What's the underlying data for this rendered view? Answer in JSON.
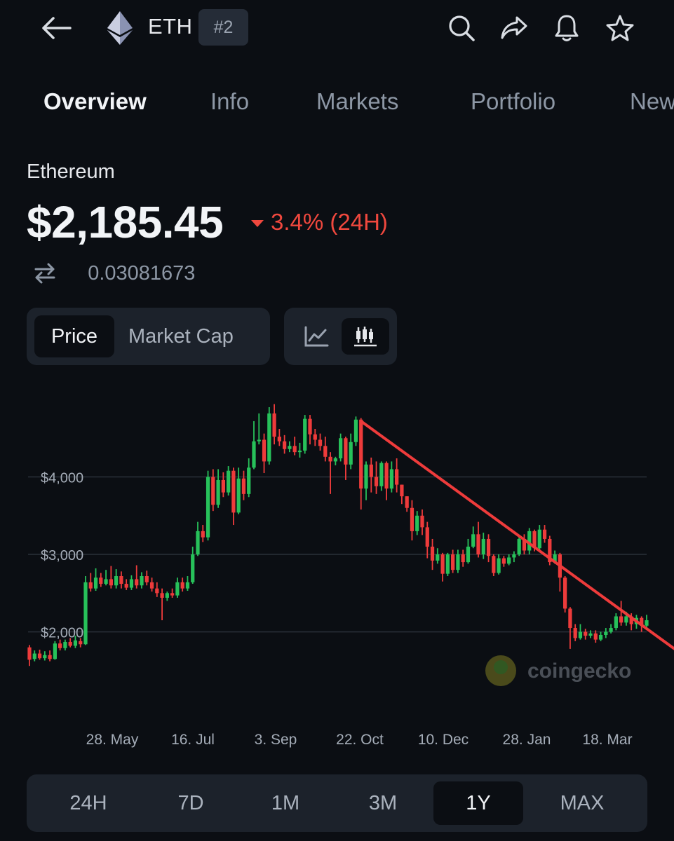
{
  "header": {
    "ticker": "ETH",
    "rank": "#2",
    "icons": [
      "back-arrow-icon",
      "ethereum-logo-icon",
      "search-icon",
      "share-icon",
      "bell-icon",
      "star-icon"
    ]
  },
  "tabs": [
    {
      "label": "Overview",
      "active": true
    },
    {
      "label": "Info",
      "active": false
    },
    {
      "label": "Markets",
      "active": false
    },
    {
      "label": "Portfolio",
      "active": false
    },
    {
      "label": "News",
      "active": false
    }
  ],
  "coin": {
    "name": "Ethereum",
    "price": "$2,185.45",
    "change": "3.4% (24H)",
    "btc_price": "0.03081673"
  },
  "toggles": {
    "price_label": "Price",
    "marketcap_label": "Market Cap",
    "active_metric": "Price",
    "chart_mode": "candlestick"
  },
  "colors": {
    "up": "#27c15a",
    "down": "#ee3b3b",
    "trendline": "#ee3b3b",
    "background": "#0b0e13"
  },
  "chart_data": {
    "type": "candlestick",
    "y_ticks": [
      {
        "value": 2000,
        "label": "$2,000"
      },
      {
        "value": 3000,
        "label": "$3,000"
      },
      {
        "value": 4000,
        "label": "$4,000"
      }
    ],
    "x_ticks": [
      "28. May",
      "16. Jul",
      "3. Sep",
      "22. Oct",
      "10. Dec",
      "28. Jan",
      "18. Mar"
    ],
    "ylim": [
      1200,
      5000
    ],
    "watermark": "coingecko",
    "candles": [
      [
        1800,
        1640,
        1830,
        1560
      ],
      [
        1650,
        1720,
        1760,
        1620
      ],
      [
        1720,
        1660,
        1770,
        1640
      ],
      [
        1660,
        1700,
        1750,
        1630
      ],
      [
        1700,
        1650,
        1760,
        1620
      ],
      [
        1650,
        1850,
        1880,
        1640
      ],
      [
        1850,
        1790,
        1900,
        1760
      ],
      [
        1790,
        1870,
        1900,
        1760
      ],
      [
        1870,
        1820,
        1920,
        1800
      ],
      [
        1820,
        1890,
        1950,
        1790
      ],
      [
        1880,
        1840,
        1920,
        1800
      ],
      [
        1840,
        2640,
        2720,
        1830
      ],
      [
        2640,
        2560,
        2760,
        2520
      ],
      [
        2560,
        2700,
        2820,
        2530
      ],
      [
        2700,
        2620,
        2760,
        2580
      ],
      [
        2620,
        2680,
        2800,
        2600
      ],
      [
        2680,
        2600,
        2850,
        2560
      ],
      [
        2600,
        2720,
        2810,
        2560
      ],
      [
        2720,
        2620,
        2780,
        2560
      ],
      [
        2620,
        2570,
        2680,
        2540
      ],
      [
        2570,
        2680,
        2730,
        2540
      ],
      [
        2680,
        2600,
        2860,
        2560
      ],
      [
        2600,
        2720,
        2770,
        2560
      ],
      [
        2720,
        2640,
        2790,
        2600
      ],
      [
        2640,
        2560,
        2700,
        2520
      ],
      [
        2560,
        2500,
        2640,
        2450
      ],
      [
        2500,
        2440,
        2560,
        2150
      ],
      [
        2440,
        2500,
        2520,
        2400
      ],
      [
        2500,
        2470,
        2560,
        2440
      ],
      [
        2470,
        2640,
        2700,
        2440
      ],
      [
        2640,
        2560,
        2700,
        2520
      ],
      [
        2560,
        2640,
        2720,
        2530
      ],
      [
        2640,
        3000,
        3100,
        2620
      ],
      [
        3000,
        3300,
        3420,
        2980
      ],
      [
        3300,
        3220,
        3380,
        3160
      ],
      [
        3220,
        4000,
        4080,
        3180
      ],
      [
        4000,
        3640,
        4100,
        3560
      ],
      [
        3640,
        3960,
        4100,
        3600
      ],
      [
        3960,
        3800,
        4060,
        3740
      ],
      [
        3800,
        4080,
        4140,
        3760
      ],
      [
        4080,
        3540,
        4120,
        3380
      ],
      [
        3540,
        3980,
        4120,
        3520
      ],
      [
        3980,
        3780,
        4080,
        3700
      ],
      [
        3780,
        4120,
        4240,
        3740
      ],
      [
        4120,
        4460,
        4720,
        4100
      ],
      [
        4460,
        4480,
        4820,
        4420
      ],
      [
        4480,
        4200,
        4560,
        4050
      ],
      [
        4200,
        4820,
        4900,
        4160
      ],
      [
        4820,
        4520,
        4940,
        4420
      ],
      [
        4520,
        4460,
        4620,
        4400
      ],
      [
        4460,
        4360,
        4540,
        4300
      ],
      [
        4360,
        4400,
        4460,
        4320
      ],
      [
        4400,
        4320,
        4520,
        4280
      ],
      [
        4320,
        4340,
        4440,
        4250
      ],
      [
        4340,
        4750,
        4800,
        4300
      ],
      [
        4750,
        4550,
        4800,
        4420
      ],
      [
        4550,
        4480,
        4620,
        4400
      ],
      [
        4480,
        4400,
        4560,
        4340
      ],
      [
        4400,
        4260,
        4520,
        4200
      ],
      [
        4260,
        4200,
        4320,
        3780
      ],
      [
        4200,
        4240,
        4260,
        4150
      ],
      [
        4240,
        4500,
        4560,
        4200
      ],
      [
        4500,
        4160,
        4520,
        3960
      ],
      [
        4160,
        4450,
        4560,
        4100
      ],
      [
        4450,
        4740,
        4780,
        4400
      ],
      [
        4740,
        3850,
        4760,
        3580
      ],
      [
        3850,
        4160,
        4200,
        3700
      ],
      [
        4160,
        4000,
        4250,
        3800
      ],
      [
        4000,
        3880,
        4200,
        3780
      ],
      [
        3880,
        4180,
        4200,
        3820
      ],
      [
        4180,
        3850,
        4200,
        3700
      ],
      [
        3850,
        4100,
        4200,
        3800
      ],
      [
        4100,
        3900,
        4240,
        3800
      ],
      [
        3900,
        3750,
        3900,
        3650
      ],
      [
        3750,
        3600,
        3750,
        3550
      ],
      [
        3600,
        3300,
        3700,
        3180
      ],
      [
        3300,
        3500,
        3560,
        3250
      ],
      [
        3500,
        3350,
        3580,
        3250
      ],
      [
        3350,
        3100,
        3420,
        2950
      ],
      [
        3100,
        2920,
        3200,
        2800
      ],
      [
        2920,
        3000,
        3080,
        2880
      ],
      [
        3000,
        2750,
        3020,
        2650
      ],
      [
        2750,
        3000,
        3020,
        2720
      ],
      [
        3000,
        2800,
        3060,
        2760
      ],
      [
        2800,
        3000,
        3060,
        2760
      ],
      [
        3000,
        2900,
        3060,
        2840
      ],
      [
        2900,
        3100,
        3200,
        2880
      ],
      [
        3100,
        3260,
        3360,
        3080
      ],
      [
        3260,
        3000,
        3420,
        2960
      ],
      [
        3000,
        3200,
        3280,
        2940
      ],
      [
        3200,
        2980,
        3260,
        2900
      ],
      [
        2980,
        2760,
        3000,
        2720
      ],
      [
        2760,
        2950,
        3000,
        2740
      ],
      [
        2950,
        2880,
        2980,
        2840
      ],
      [
        2880,
        2960,
        3000,
        2860
      ],
      [
        2960,
        3000,
        3040,
        2900
      ],
      [
        3000,
        3200,
        3240,
        2980
      ],
      [
        3200,
        3050,
        3260,
        3000
      ],
      [
        3050,
        3300,
        3340,
        3000
      ],
      [
        3300,
        3080,
        3320,
        3040
      ],
      [
        3080,
        3320,
        3380,
        3060
      ],
      [
        3320,
        3200,
        3380,
        3150
      ],
      [
        3200,
        2900,
        3240,
        2860
      ],
      [
        2900,
        3000,
        3050,
        2880
      ],
      [
        3000,
        2700,
        3020,
        2520
      ],
      [
        2700,
        2300,
        2720,
        2250
      ],
      [
        2300,
        2050,
        2320,
        1780
      ],
      [
        2050,
        1920,
        2100,
        1880
      ],
      [
        1920,
        2000,
        2100,
        1900
      ],
      [
        2000,
        1950,
        2040,
        1900
      ],
      [
        1950,
        1980,
        2020,
        1920
      ],
      [
        1980,
        1900,
        2020,
        1860
      ],
      [
        1900,
        1960,
        2000,
        1880
      ],
      [
        1960,
        2000,
        2050,
        1920
      ],
      [
        2000,
        2050,
        2100,
        1980
      ],
      [
        2050,
        2200,
        2240,
        2020
      ],
      [
        2200,
        2120,
        2400,
        2080
      ],
      [
        2120,
        2200,
        2260,
        2080
      ],
      [
        2200,
        2100,
        2240,
        2020
      ],
      [
        2100,
        2180,
        2220,
        2040
      ],
      [
        2180,
        2080,
        2200,
        2000
      ],
      [
        2080,
        2150,
        2220,
        2060
      ]
    ],
    "trendline": {
      "from": [
        65,
        4720
      ],
      "to": [
        125,
        1850
      ]
    }
  },
  "range_buttons": [
    {
      "label": "24H",
      "active": false
    },
    {
      "label": "7D",
      "active": false
    },
    {
      "label": "1M",
      "active": false
    },
    {
      "label": "3M",
      "active": false
    },
    {
      "label": "1Y",
      "active": true
    },
    {
      "label": "MAX",
      "active": false
    }
  ]
}
